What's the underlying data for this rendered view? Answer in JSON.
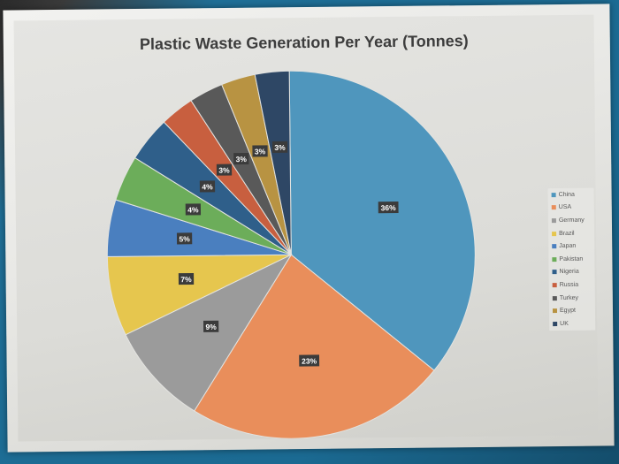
{
  "chart_data": {
    "type": "pie",
    "title": "Plastic Waste Generation Per Year (Tonnes)",
    "legend_position": "right",
    "slices": [
      {
        "label": "China",
        "percent": 36,
        "display": "36%",
        "color": "#4f96bd"
      },
      {
        "label": "USA",
        "percent": 23,
        "display": "23%",
        "color": "#e98e5b"
      },
      {
        "label": "Germany",
        "percent": 9,
        "display": "9%",
        "color": "#9b9b9b"
      },
      {
        "label": "Brazil",
        "percent": 7,
        "display": "7%",
        "color": "#e6c64e"
      },
      {
        "label": "Japan",
        "percent": 5,
        "display": "5%",
        "color": "#4a7fbf"
      },
      {
        "label": "Pakistan",
        "percent": 4,
        "display": "4%",
        "color": "#6cad5a"
      },
      {
        "label": "Nigeria",
        "percent": 4,
        "display": "4%",
        "color": "#2f5f8a"
      },
      {
        "label": "Russia",
        "percent": 3,
        "display": "3%",
        "color": "#c85f3f"
      },
      {
        "label": "Turkey",
        "percent": 3,
        "display": "3%",
        "color": "#595959"
      },
      {
        "label": "Egypt",
        "percent": 3,
        "display": "3%",
        "color": "#b89342"
      },
      {
        "label": "UK",
        "percent": 3,
        "display": "3%",
        "color": "#2e4765"
      }
    ]
  }
}
